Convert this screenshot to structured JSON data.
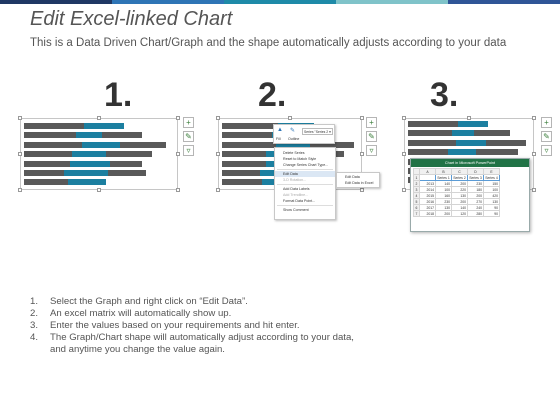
{
  "header": {
    "title": "Edit Excel-linked Chart",
    "subtitle": "This is a Data Driven Chart/Graph and the shape automatically adjusts according to your data"
  },
  "accent_colors": [
    "#1f3864",
    "#2e75b6",
    "#1e8aa8",
    "#7fc3c9",
    "#2f5597"
  ],
  "bar_colors": {
    "dark": "#595959",
    "teal": "#1c7fa0"
  },
  "panels": [
    {
      "number": "1."
    },
    {
      "number": "2."
    },
    {
      "number": "3."
    }
  ],
  "side_icons": [
    "plus-icon",
    "brush-icon",
    "filter-icon"
  ],
  "context_menu": {
    "mini_toolbar": {
      "fill": "Fill",
      "outline": "Outline",
      "series": "Series \"Series 2 ▾"
    },
    "items": [
      {
        "label": "Delete Series",
        "enabled": true
      },
      {
        "label": "Reset to Match Style",
        "enabled": true
      },
      {
        "label": "Change Series Chart Type...",
        "enabled": true
      },
      {
        "label": "Edit Data",
        "enabled": true,
        "highlighted": true
      },
      {
        "label": "3-D Rotation...",
        "enabled": false
      },
      {
        "label": "Add Data Labels",
        "enabled": true
      },
      {
        "label": "Add Trendline...",
        "enabled": false
      },
      {
        "label": "Format Data Point...",
        "enabled": true
      },
      {
        "label": "Show Comment",
        "enabled": true
      }
    ],
    "submenu": [
      "Edit Data",
      "Edit Data in Excel"
    ]
  },
  "excel_window": {
    "title": "Chart in Microsoft PowerPoint",
    "columns": [
      "",
      "A",
      "B",
      "C",
      "D",
      "E"
    ],
    "rows": [
      [
        "1",
        "",
        "Series 1",
        "Series 2",
        "Series 3",
        "Series 4"
      ],
      [
        "2",
        "2013",
        "140",
        "200",
        "230",
        "150"
      ],
      [
        "3",
        "2014",
        "100",
        "220",
        "180",
        "100"
      ],
      [
        "4",
        "2015",
        "160",
        "130",
        "200",
        "420"
      ],
      [
        "5",
        "2016",
        "230",
        "200",
        "270",
        "130"
      ],
      [
        "6",
        "2017",
        "130",
        "140",
        "240",
        "90"
      ],
      [
        "7",
        "2018",
        "200",
        "120",
        "280",
        "90"
      ]
    ]
  },
  "steps": [
    {
      "n": "1.",
      "text": "Select the Graph and right click on “Edit Data”."
    },
    {
      "n": "2.",
      "text": "An excel matrix will automatically show up."
    },
    {
      "n": "3.",
      "text": "Enter the values based on your requirements and hit enter."
    },
    {
      "n": "4.",
      "text": "The Graph/Chart shape will automatically adjust according to your data,\nand anytime you change the value again."
    }
  ]
}
